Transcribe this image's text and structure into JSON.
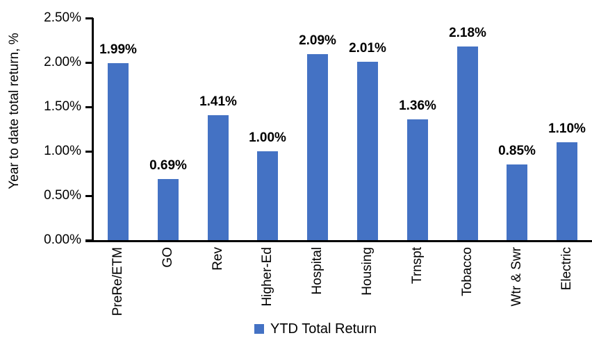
{
  "chart_data": {
    "type": "bar",
    "categories": [
      "PreRe/ETM",
      "GO",
      "Rev",
      "Higher-Ed",
      "Hospital",
      "Housing",
      "Trnspt",
      "Tobacco",
      "Wtr & Swr",
      "Electric"
    ],
    "values": [
      1.99,
      0.69,
      1.41,
      1.0,
      2.09,
      2.01,
      1.36,
      2.18,
      0.85,
      1.1
    ],
    "data_labels": [
      "1.99%",
      "0.69%",
      "1.41%",
      "1.00%",
      "2.09%",
      "2.01%",
      "1.36%",
      "2.18%",
      "0.85%",
      "1.10%"
    ],
    "title": "",
    "xlabel": "",
    "ylabel": "Year to date total return, %",
    "ylim": [
      0,
      2.5
    ],
    "ytick_step": 0.5,
    "ytick_labels": [
      "0.00%",
      "0.50%",
      "1.00%",
      "1.50%",
      "2.00%",
      "2.50%"
    ],
    "legend": "YTD Total Return",
    "legend_position": "bottom",
    "grid": false,
    "bar_color": "#4472C4",
    "axis_color": "#000000",
    "text_color": "#000000",
    "background": "#FFFFFF"
  }
}
